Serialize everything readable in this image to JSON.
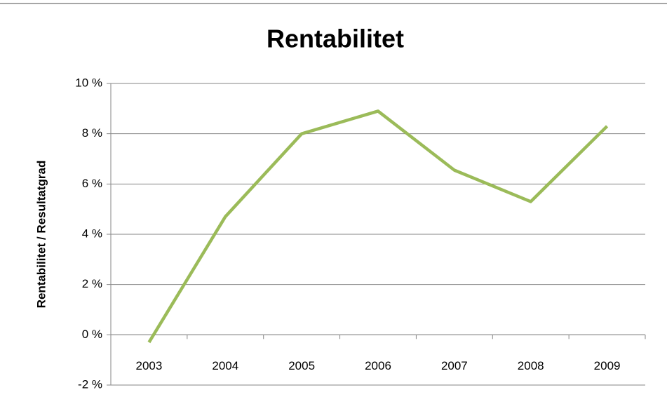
{
  "chart_data": {
    "type": "line",
    "title": "Rentabilitet",
    "y_label": "Rentabilitet / Resultatgrad",
    "categories": [
      "2003",
      "2004",
      "2005",
      "2006",
      "2007",
      "2008",
      "2009"
    ],
    "values": [
      -0.3,
      4.7,
      8.0,
      8.9,
      6.55,
      5.3,
      8.3
    ],
    "color": "#9bbb59",
    "ylim": [
      -2,
      10
    ],
    "yticks": [
      {
        "value": -2,
        "label": "-2 %"
      },
      {
        "value": 0,
        "label": "0 %"
      },
      {
        "value": 2,
        "label": "2 %"
      },
      {
        "value": 4,
        "label": "4 %"
      },
      {
        "value": 6,
        "label": "6 %"
      },
      {
        "value": 8,
        "label": "8 %"
      },
      {
        "value": 10,
        "label": "10 %"
      }
    ],
    "grid": true
  }
}
